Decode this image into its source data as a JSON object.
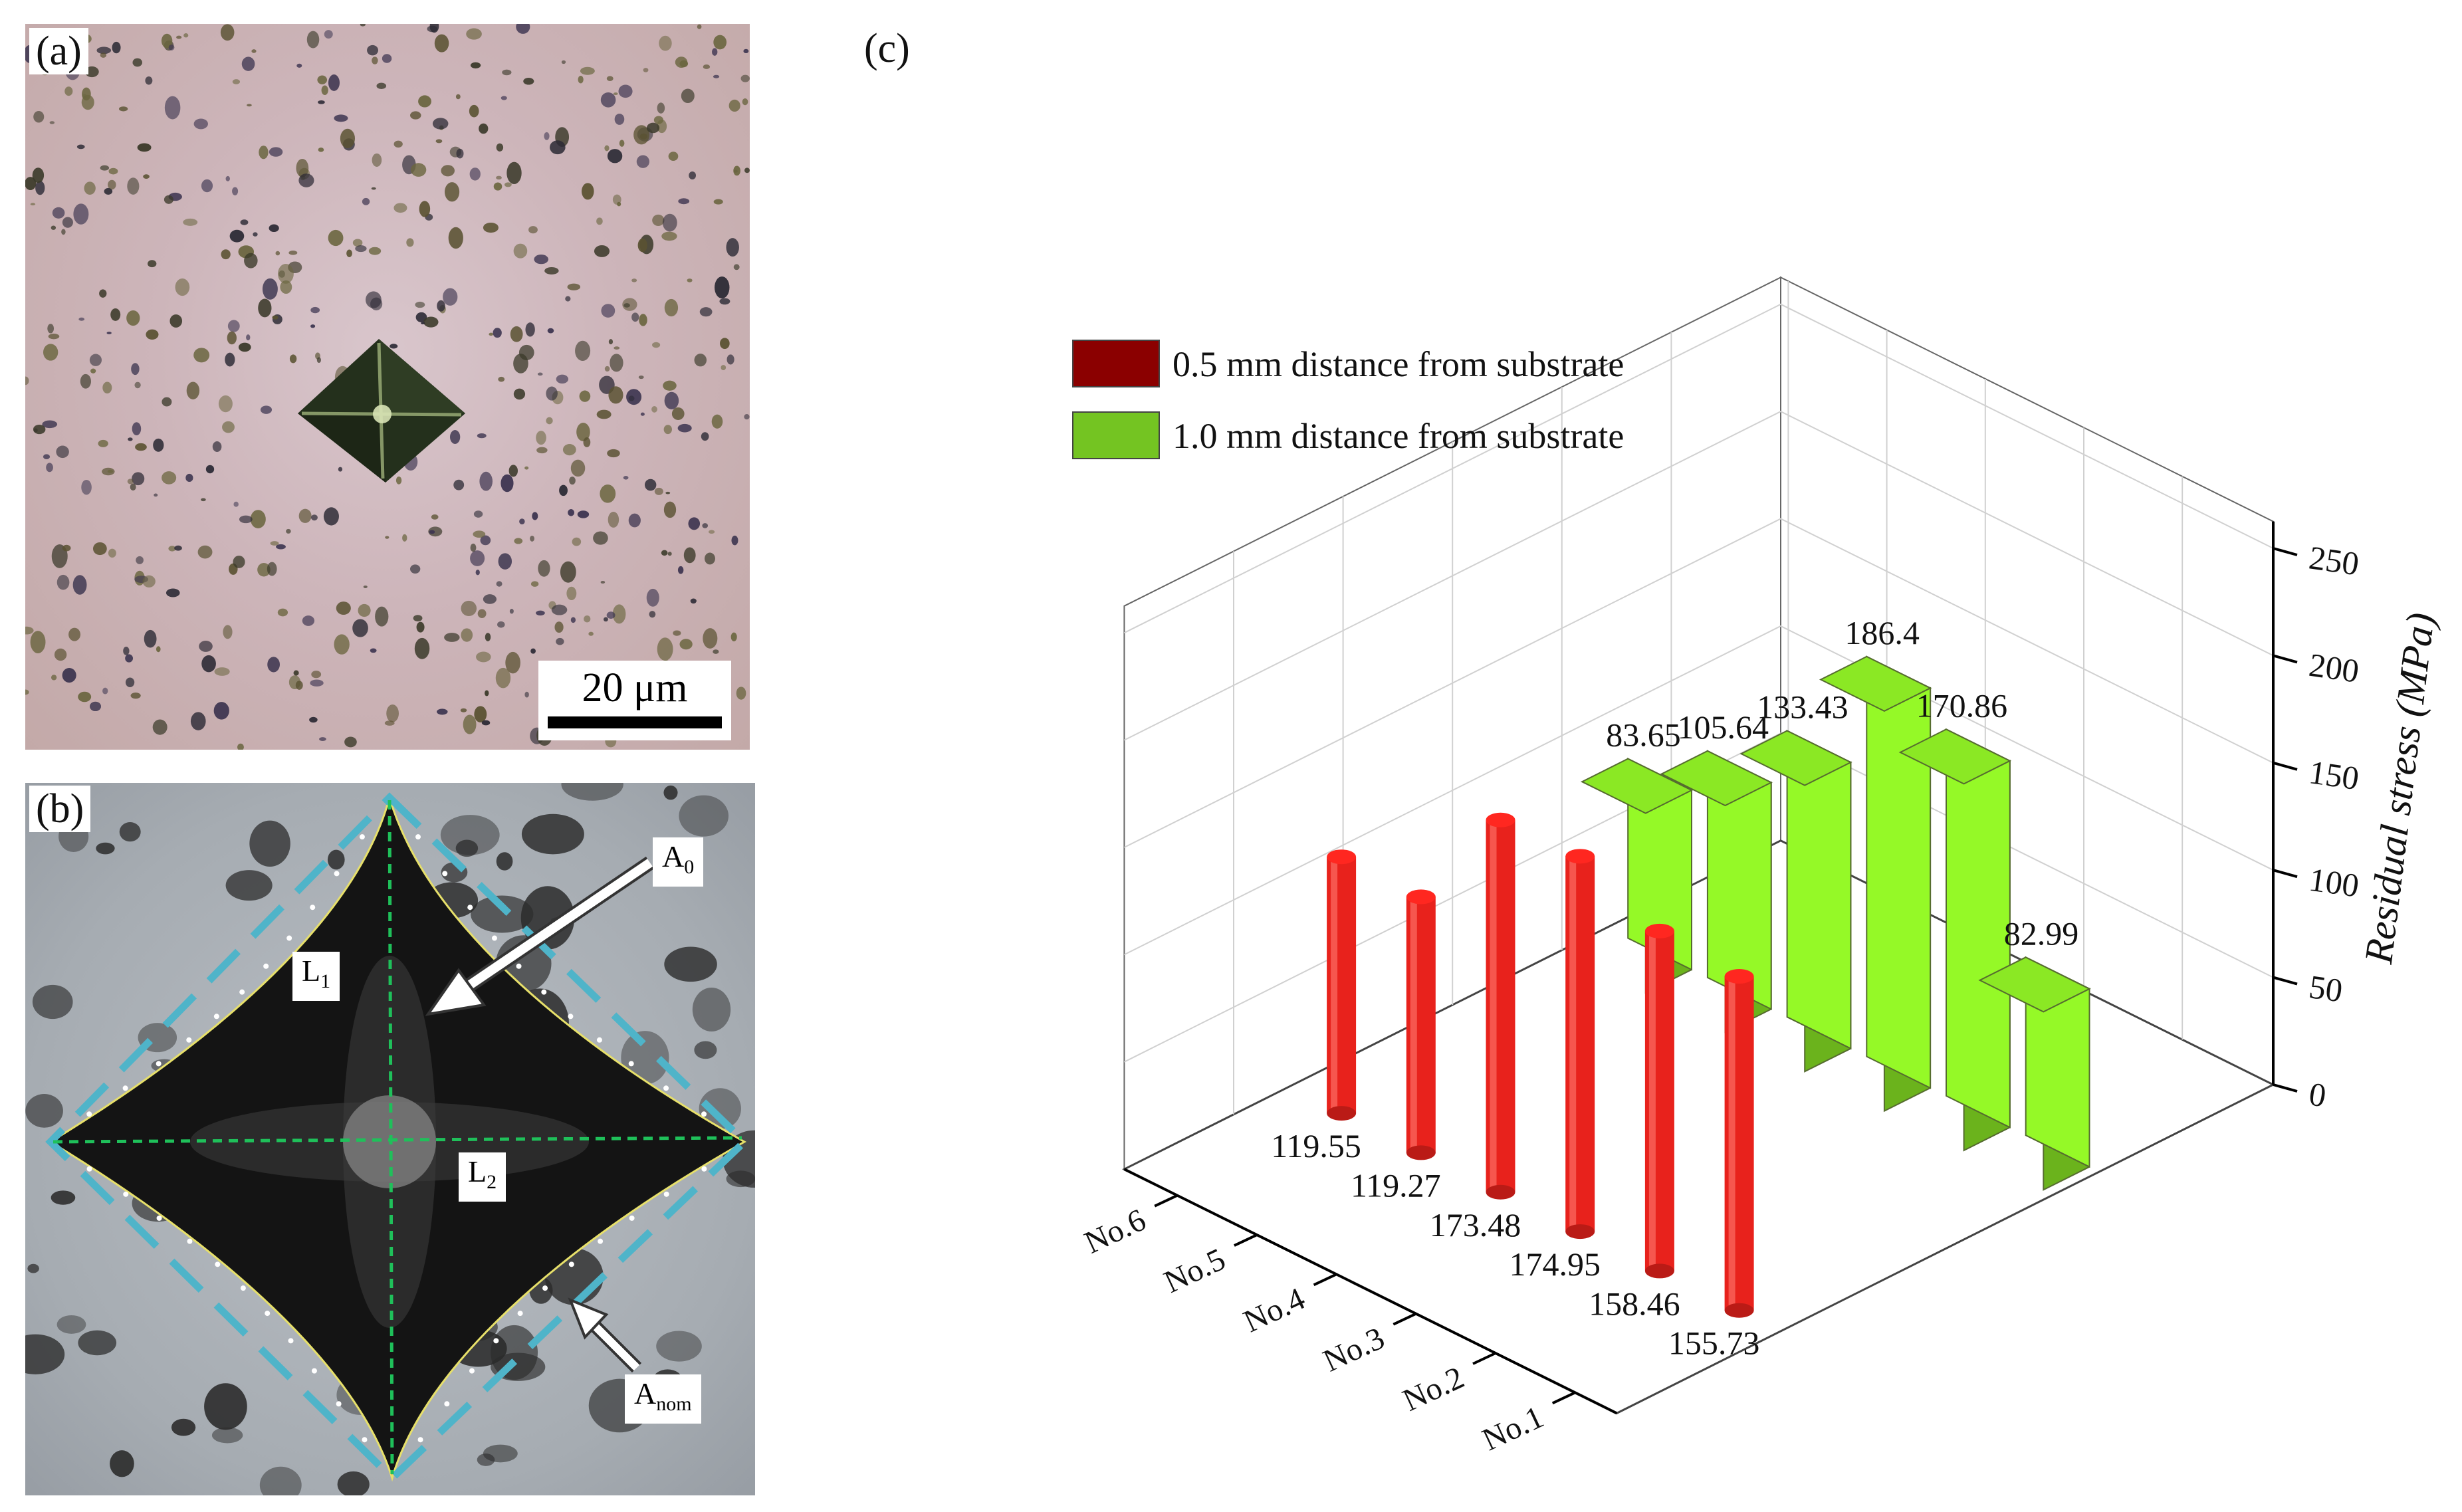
{
  "panels": {
    "a": {
      "label": "(a)",
      "scale_bar": "20 μm"
    },
    "b": {
      "label": "(b)",
      "labels": {
        "a0": "A",
        "a0_sub": "0",
        "l1": "L",
        "l1_sub": "1",
        "l2": "L",
        "l2_sub": "2",
        "anom": "A",
        "anom_sub": "nom"
      }
    },
    "c": {
      "label": "(c)"
    }
  },
  "chart_data": {
    "type": "bar",
    "title": "",
    "zlabel": "Residual stress (MPa)",
    "zlim": [
      0,
      250
    ],
    "zticks": [
      "0",
      "50",
      "100",
      "150",
      "200",
      "250"
    ],
    "categories": [
      "No.1",
      "No.2",
      "No.3",
      "No.4",
      "No.5",
      "No.6"
    ],
    "legend_position": "top-left",
    "series": [
      {
        "name": "0.5 mm distance from substrate",
        "color": "#e8221c",
        "shape": "cylinder",
        "values": [
          155.73,
          158.46,
          174.95,
          173.48,
          119.27,
          119.55
        ],
        "labels": [
          "155.73",
          "158.46",
          "174.95",
          "173.48",
          "119.27",
          "119.55"
        ]
      },
      {
        "name": "1.0 mm distance from substrate",
        "color": "#7ed321",
        "shape": "box",
        "values": [
          82.99,
          170.86,
          186.4,
          133.43,
          105.64,
          83.65
        ],
        "labels": [
          "82.99",
          "170.86",
          "186.4",
          "133.43",
          "105.64",
          "83.65"
        ]
      }
    ],
    "legend_swatches": [
      "#8b0000",
      "#74c422"
    ]
  }
}
